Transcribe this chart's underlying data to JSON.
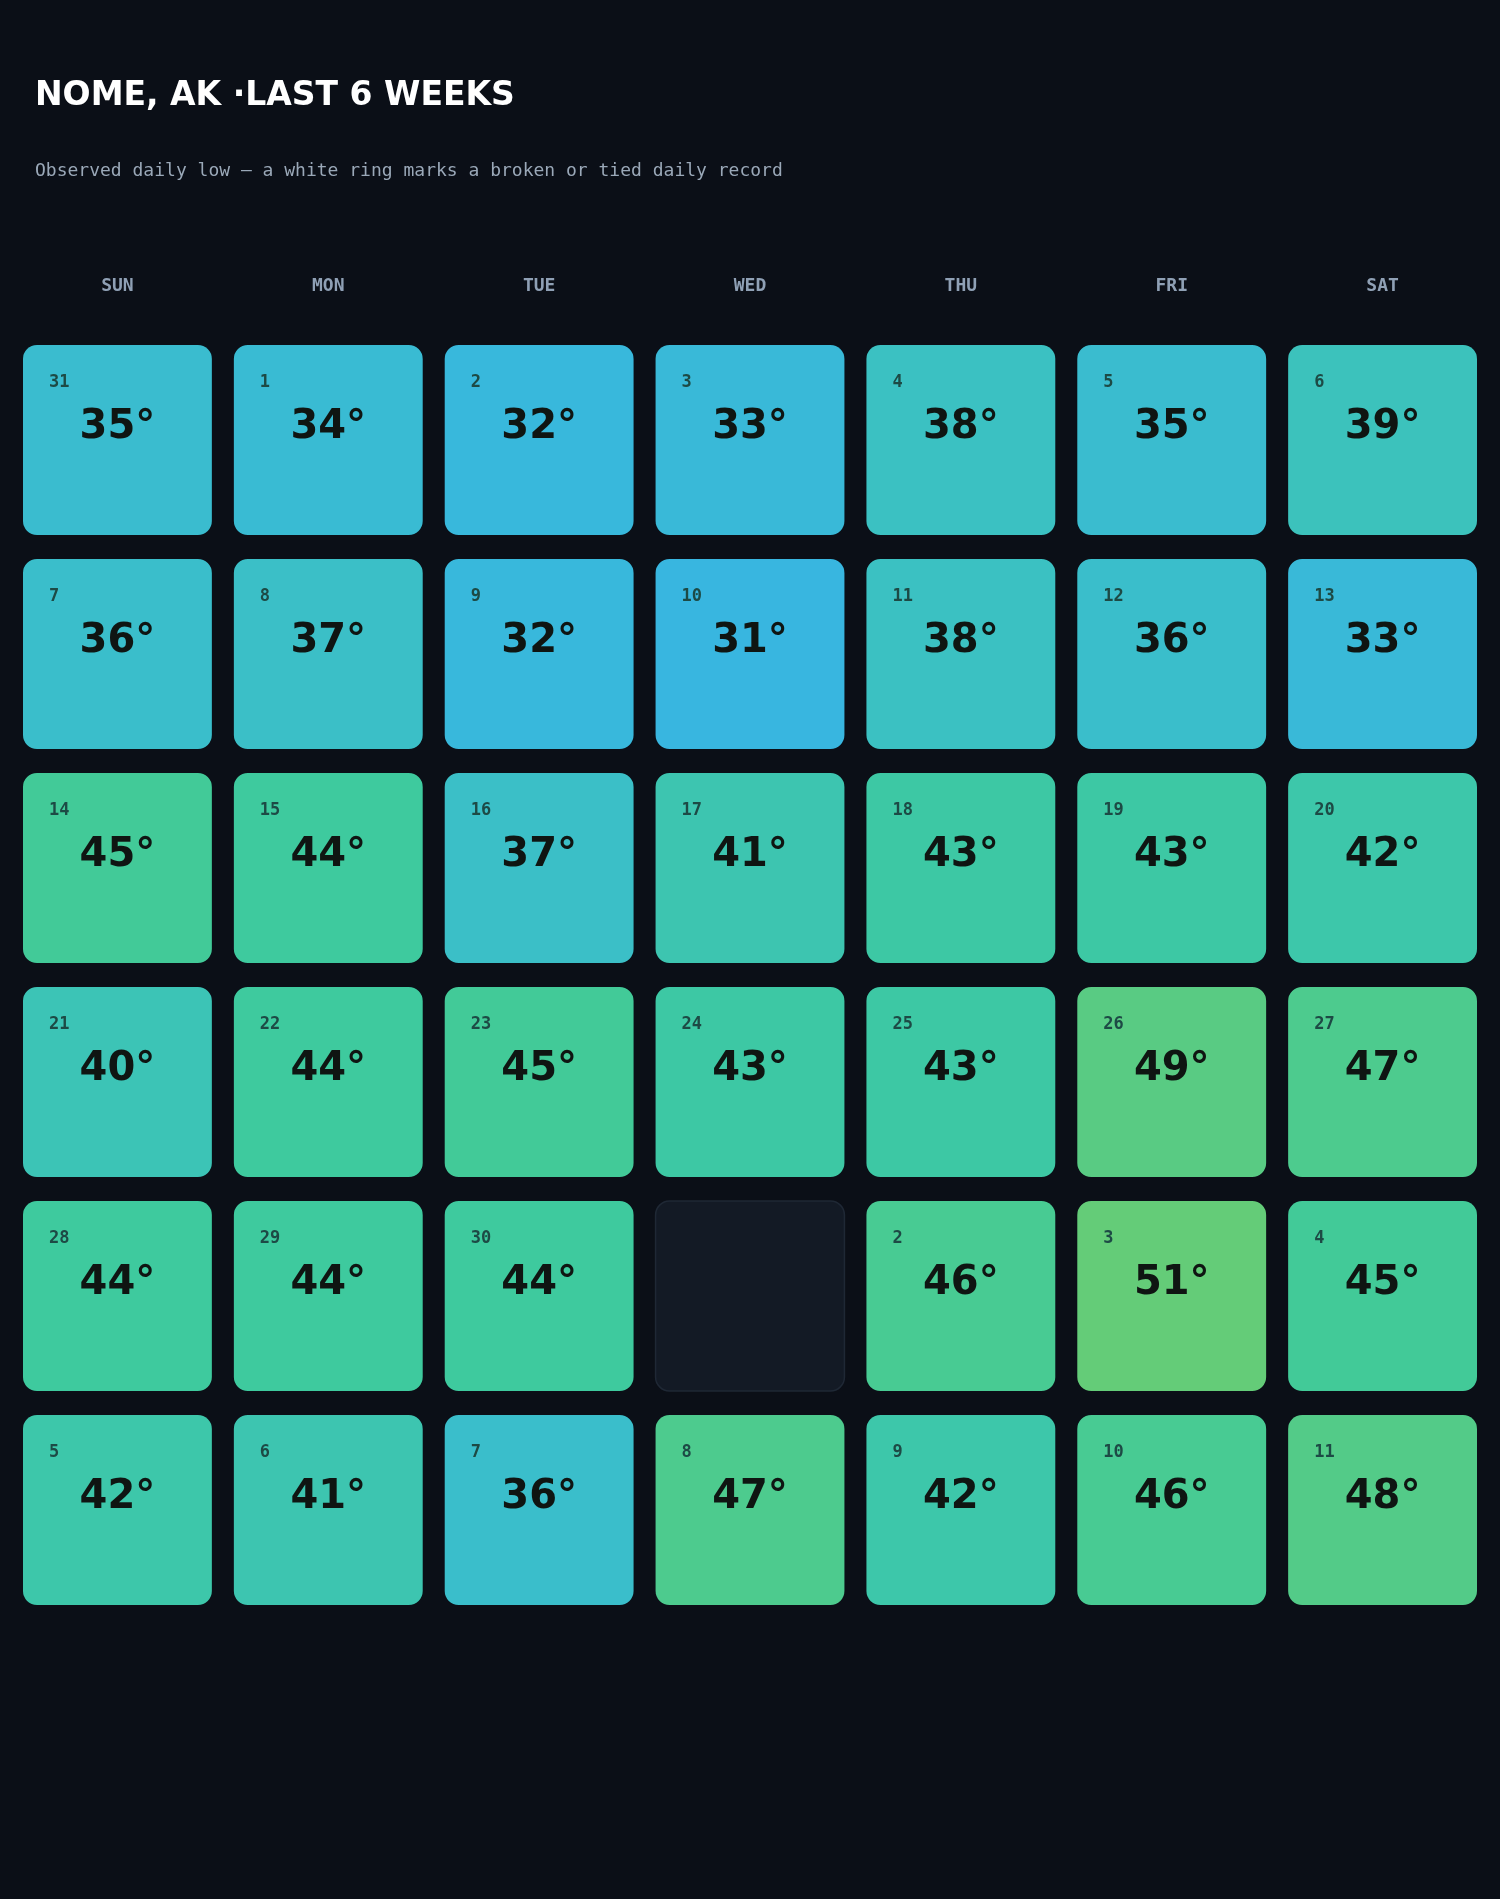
{
  "chart_data": {
    "type": "heatmap",
    "title": "NOME, AK ·LAST 6 WEEKS",
    "subtitle": "Observed daily low — a white ring marks a broken or tied daily record",
    "categories": [
      "SUN",
      "MON",
      "TUE",
      "WED",
      "THU",
      "FRI",
      "SAT"
    ],
    "y_categories": [
      null,
      null,
      null,
      null,
      null,
      null
    ],
    "cells": [
      [
        35,
        34,
        32,
        33,
        38,
        35,
        39
      ],
      [
        36,
        37,
        32,
        31,
        38,
        36,
        33
      ],
      [
        45,
        44,
        37,
        41,
        43,
        43,
        42
      ],
      [
        40,
        44,
        45,
        43,
        43,
        49,
        47
      ],
      [
        44,
        44,
        44,
        null,
        46,
        51,
        45
      ],
      [
        42,
        41,
        36,
        47,
        42,
        46,
        48
      ]
    ],
    "cell_labels": [
      [
        "35°",
        "34°",
        "32°",
        "33°",
        "38°",
        "35°",
        "39°"
      ],
      [
        "36°",
        "37°",
        "32°",
        "31°",
        "38°",
        "36°",
        "33°"
      ],
      [
        "45°",
        "44°",
        "37°",
        "41°",
        "43°",
        "43°",
        "42°"
      ],
      [
        "40°",
        "44°",
        "45°",
        "43°",
        "43°",
        "49°",
        "47°"
      ],
      [
        "44°",
        "44°",
        "44°",
        null,
        "46°",
        "51°",
        "45°"
      ],
      [
        "42°",
        "41°",
        "36°",
        "47°",
        "42°",
        "46°",
        "48°"
      ]
    ],
    "annotations": [
      "31",
      "1",
      "2",
      "3",
      "4",
      "5",
      "6",
      "7",
      "8",
      "9",
      "10",
      "11",
      "12",
      "13",
      "14",
      "15",
      "16",
      "17",
      "18",
      "19",
      "20",
      "21",
      "22",
      "23",
      "24",
      "25",
      "26",
      "27",
      "28",
      "29",
      "30",
      "2",
      "3",
      "4",
      "5",
      "6",
      "7",
      "8",
      "9",
      "10",
      "11"
    ]
  }
}
